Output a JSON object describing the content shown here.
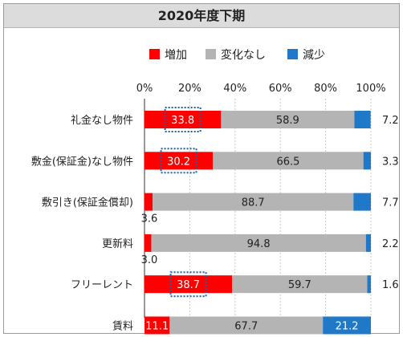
{
  "chart_data": {
    "type": "bar",
    "orientation": "horizontal",
    "stacked": true,
    "title": "2020年度下期",
    "categories": [
      "礼金なし物件",
      "敷金(保証金)なし物件",
      "敷引き(保証金償却)",
      "更新料",
      "フリーレント",
      "賃料"
    ],
    "series": [
      {
        "name": "増加",
        "color": "#ff0000",
        "values": [
          33.8,
          30.2,
          3.6,
          3.0,
          38.7,
          11.1
        ]
      },
      {
        "name": "変化なし",
        "color": "#b4b4b4",
        "values": [
          58.9,
          66.5,
          88.7,
          94.8,
          59.7,
          67.7
        ]
      },
      {
        "name": "減少",
        "color": "#1f78c8",
        "values": [
          7.2,
          3.3,
          7.7,
          2.2,
          1.6,
          21.2
        ]
      }
    ],
    "xlim": [
      0,
      100
    ],
    "x_ticks": [
      "0%",
      "20%",
      "40%",
      "60%",
      "80%",
      "100%"
    ],
    "grid": true,
    "legend_position": "top",
    "highlighted": [
      {
        "category_index": 0,
        "series_index": 0
      },
      {
        "category_index": 1,
        "series_index": 0
      },
      {
        "category_index": 4,
        "series_index": 0
      }
    ]
  }
}
